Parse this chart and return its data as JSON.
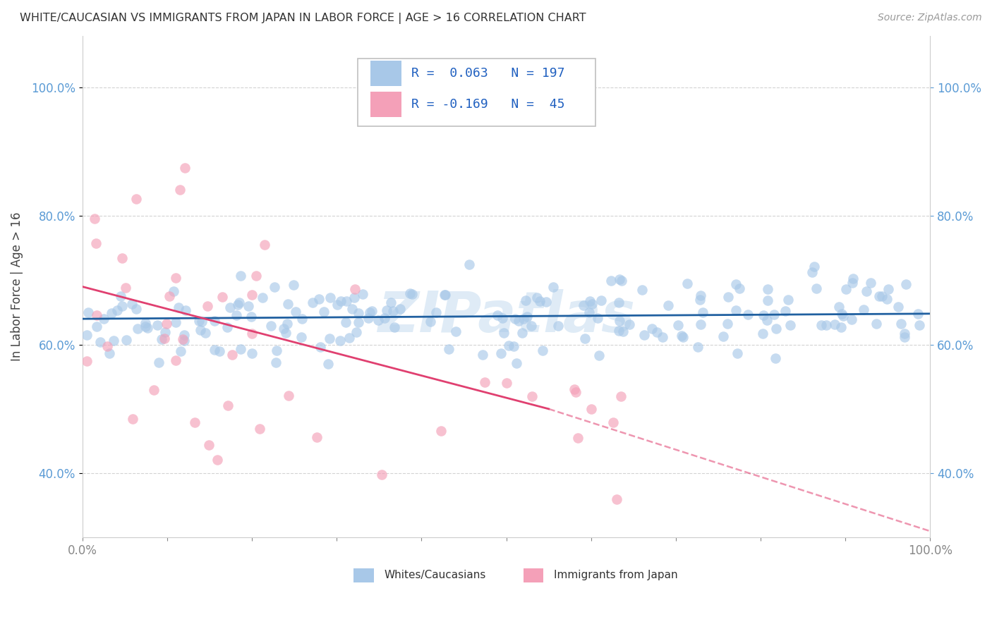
{
  "title": "WHITE/CAUCASIAN VS IMMIGRANTS FROM JAPAN IN LABOR FORCE | AGE > 16 CORRELATION CHART",
  "source": "Source: ZipAtlas.com",
  "ylabel": "In Labor Force | Age > 16",
  "xlim": [
    0.0,
    1.0
  ],
  "ylim": [
    0.3,
    1.08
  ],
  "blue_R": 0.063,
  "blue_N": 197,
  "pink_R": -0.169,
  "pink_N": 45,
  "blue_dot_color": "#a8c8e8",
  "pink_dot_color": "#f4a0b8",
  "blue_line_color": "#2060a0",
  "pink_line_color": "#e04070",
  "legend_label_1": "Whites/Caucasians",
  "legend_label_2": "Immigrants from Japan",
  "watermark": "ZIPatlas",
  "background_color": "#ffffff",
  "grid_color": "#c8c8c8",
  "title_color": "#333333",
  "tick_color": "#5b9bd5",
  "y_ticks": [
    0.4,
    0.6,
    0.8,
    1.0
  ],
  "y_tick_labels": [
    "40.0%",
    "60.0%",
    "80.0%",
    "100.0%"
  ],
  "blue_trend_start_y": 0.64,
  "blue_trend_end_y": 0.648,
  "pink_trend_start_y": 0.69,
  "pink_trend_solid_end_x": 0.55,
  "pink_trend_solid_end_y": 0.5,
  "pink_trend_dashed_end_x": 1.0,
  "pink_trend_dashed_end_y": 0.31
}
